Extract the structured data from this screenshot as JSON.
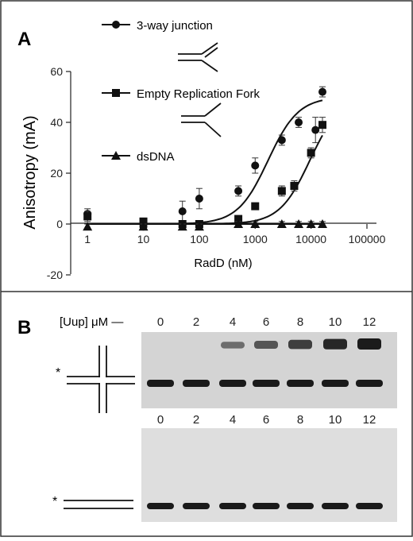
{
  "panel_a": {
    "letter": "A",
    "legend": [
      {
        "label": "3-way junction",
        "marker": "circle"
      },
      {
        "label": "Empty Replication Fork",
        "marker": "square"
      },
      {
        "label": "dsDNA",
        "marker": "triangle"
      }
    ]
  },
  "panel_b": {
    "letter": "B",
    "concentration_label": "[Uup] μM —",
    "lanes": [
      "0",
      "2",
      "4",
      "6",
      "8",
      "10",
      "12"
    ],
    "lanes_lower": [
      "0",
      "2",
      "4",
      "6",
      "8",
      "10",
      "12"
    ],
    "star_upper": "*",
    "star_lower": "*",
    "upper_shift_intensity": [
      0.0,
      0.05,
      0.3,
      0.5,
      0.7,
      0.9,
      1.0
    ]
  },
  "chart_data": {
    "type": "scatter",
    "xlabel": "RadD (nM)",
    "ylabel": "Anisotropy (mA)",
    "xscale": "log",
    "xlim": [
      0.5,
      100000
    ],
    "ylim": [
      -20,
      60
    ],
    "xticks": [
      1,
      10,
      100,
      1000,
      10000,
      100000
    ],
    "xtick_labels": [
      "1",
      "10",
      "100",
      "1000",
      "10000",
      "100000"
    ],
    "yticks": [
      -20,
      0,
      20,
      40,
      60
    ],
    "ytick_labels": [
      "-20",
      "0",
      "20",
      "40",
      "60"
    ],
    "grid": false,
    "legend_position": "top",
    "series": [
      {
        "name": "3-way junction",
        "marker": "circle",
        "x": [
          1,
          10,
          50,
          100,
          500,
          1000,
          3000,
          6000,
          12000,
          16000
        ],
        "y": [
          4,
          -1,
          5,
          10,
          13,
          23,
          33,
          40,
          37,
          52
        ],
        "err": [
          2,
          1,
          4,
          4,
          2,
          3,
          2,
          2,
          5,
          2
        ],
        "fit": {
          "bottom": 0,
          "top": 50,
          "ec50": 1700
        }
      },
      {
        "name": "Empty Replication Fork",
        "marker": "square",
        "x": [
          1,
          10,
          50,
          100,
          500,
          1000,
          3000,
          5000,
          10000,
          16000
        ],
        "y": [
          3,
          1,
          0,
          0,
          2,
          7,
          13,
          15,
          28,
          39
        ],
        "err": [
          2,
          1,
          1,
          1,
          1,
          1,
          2,
          2,
          2,
          3
        ],
        "fit": {
          "bottom": 0,
          "top": 50,
          "ec50": 9500
        }
      },
      {
        "name": "dsDNA",
        "marker": "triangle",
        "x": [
          1,
          10,
          50,
          100,
          500,
          1000,
          3000,
          6000,
          10000,
          16000
        ],
        "y": [
          -1,
          -1,
          -1,
          -1,
          0,
          0,
          0,
          0,
          0,
          0
        ],
        "err": [
          1,
          1,
          1,
          1,
          1,
          1,
          1,
          1,
          1,
          1
        ]
      }
    ]
  }
}
